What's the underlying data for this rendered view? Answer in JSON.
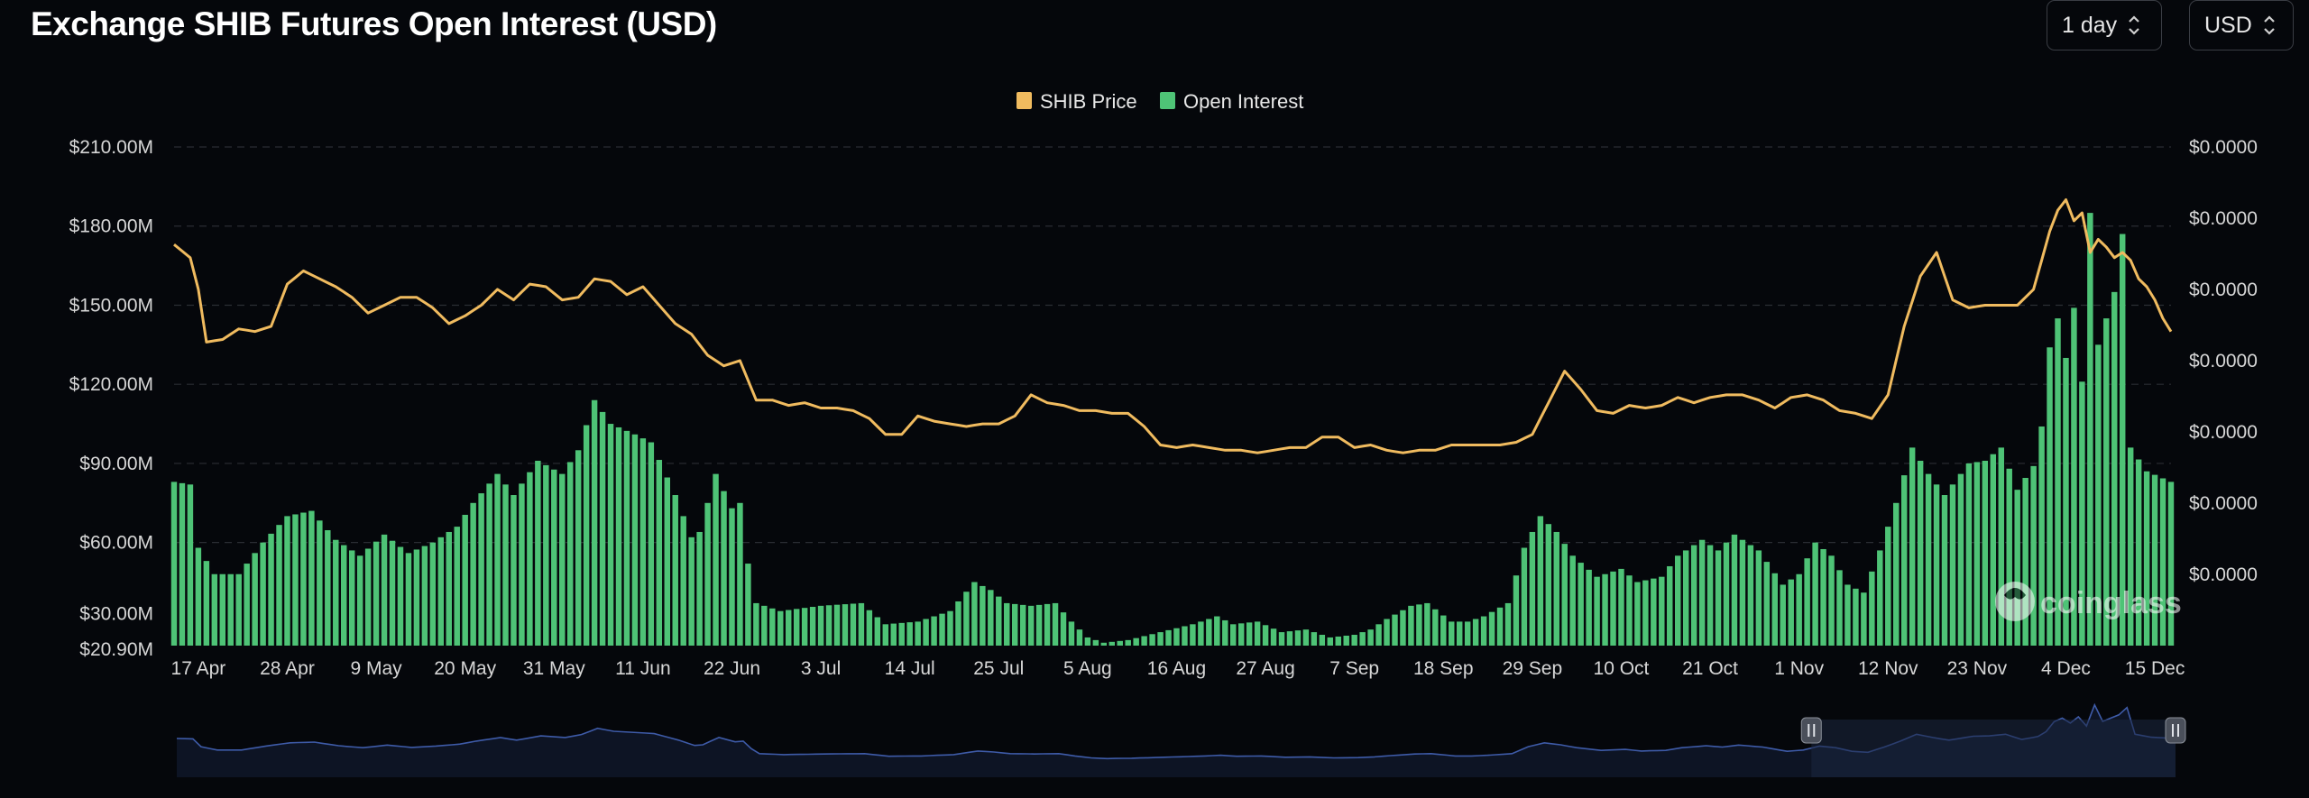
{
  "header": {
    "title": "Exchange SHIB Futures Open Interest (USD)",
    "interval_label": "1 day",
    "currency_label": "USD"
  },
  "icons": {
    "dropdown": "chevron-up-down-icon",
    "watermark": "coinglass-logo-icon",
    "handle": "pause-handle-icon"
  },
  "colors": {
    "background": "#05070b",
    "price_line": "#f0bb5f",
    "open_interest_bar": "#4ec376",
    "navigator_line": "#3e5ba8",
    "navigator_fill": "#0d1424",
    "grid": "#2a2d33"
  },
  "watermark": {
    "text": "coinglass"
  },
  "chart_data": {
    "type": "bar",
    "legend": [
      "SHIB Price",
      "Open Interest"
    ],
    "legend_position": "top-center",
    "grid": true,
    "y_left": {
      "ticks": [
        "$210.00M",
        "$180.00M",
        "$150.00M",
        "$120.00M",
        "$90.00M",
        "$60.00M",
        "$30.00M",
        "$20.90M"
      ],
      "tick_values": [
        210,
        180,
        150,
        120,
        90,
        60,
        30,
        20.9
      ],
      "range": [
        20.9,
        210
      ],
      "unit": "USD millions"
    },
    "y_right": {
      "ticks": [
        "$0.0000",
        "$0.0000",
        "$0.0000",
        "$0.0000",
        "$0.0000",
        "$0.0000",
        "$0.0000"
      ]
    },
    "x_ticks": [
      "17 Apr",
      "28 Apr",
      "9 May",
      "20 May",
      "31 May",
      "11 Jun",
      "22 Jun",
      "3 Jul",
      "14 Jul",
      "25 Jul",
      "5 Aug",
      "16 Aug",
      "27 Aug",
      "7 Sep",
      "18 Sep",
      "29 Sep",
      "10 Oct",
      "21 Oct",
      "1 Nov",
      "12 Nov",
      "23 Nov",
      "4 Dec",
      "15 Dec"
    ],
    "x_range": [
      "2023-04-14",
      "2023-12-17"
    ],
    "series": [
      {
        "name": "Open Interest",
        "type": "bar",
        "axis": "left",
        "keypoints": [
          [
            0,
            83
          ],
          [
            2,
            82
          ],
          [
            3,
            58
          ],
          [
            5,
            48
          ],
          [
            8,
            48
          ],
          [
            11,
            60
          ],
          [
            14,
            70
          ],
          [
            17,
            72
          ],
          [
            20,
            61
          ],
          [
            23,
            55
          ],
          [
            26,
            63
          ],
          [
            29,
            56
          ],
          [
            32,
            60
          ],
          [
            35,
            66
          ],
          [
            37,
            75
          ],
          [
            40,
            86
          ],
          [
            42,
            78
          ],
          [
            45,
            91
          ],
          [
            48,
            86
          ],
          [
            50,
            95
          ],
          [
            52,
            114
          ],
          [
            54,
            105
          ],
          [
            57,
            101
          ],
          [
            59,
            98
          ],
          [
            62,
            78
          ],
          [
            64,
            62
          ],
          [
            65,
            64
          ],
          [
            67,
            86
          ],
          [
            69,
            73
          ],
          [
            70,
            75
          ],
          [
            71,
            52
          ],
          [
            72,
            37
          ],
          [
            75,
            34
          ],
          [
            80,
            36
          ],
          [
            85,
            37
          ],
          [
            88,
            29
          ],
          [
            92,
            30
          ],
          [
            96,
            34
          ],
          [
            99,
            45
          ],
          [
            101,
            42
          ],
          [
            103,
            37
          ],
          [
            106,
            36
          ],
          [
            109,
            37
          ],
          [
            111,
            30
          ],
          [
            113,
            24
          ],
          [
            115,
            22
          ],
          [
            118,
            23
          ],
          [
            122,
            26
          ],
          [
            126,
            29
          ],
          [
            129,
            32
          ],
          [
            131,
            29
          ],
          [
            134,
            30
          ],
          [
            137,
            26
          ],
          [
            140,
            27
          ],
          [
            143,
            24
          ],
          [
            146,
            25
          ],
          [
            148,
            27
          ],
          [
            150,
            31
          ],
          [
            153,
            36
          ],
          [
            155,
            37
          ],
          [
            158,
            30
          ],
          [
            160,
            30
          ],
          [
            162,
            32
          ],
          [
            165,
            37
          ],
          [
            167,
            58
          ],
          [
            169,
            70
          ],
          [
            171,
            64
          ],
          [
            173,
            55
          ],
          [
            176,
            47
          ],
          [
            179,
            50
          ],
          [
            181,
            45
          ],
          [
            184,
            47
          ],
          [
            186,
            55
          ],
          [
            189,
            61
          ],
          [
            191,
            57
          ],
          [
            193,
            63
          ],
          [
            196,
            57
          ],
          [
            199,
            44
          ],
          [
            201,
            48
          ],
          [
            203,
            60
          ],
          [
            205,
            55
          ],
          [
            207,
            44
          ],
          [
            209,
            41
          ],
          [
            211,
            57
          ],
          [
            213,
            75
          ],
          [
            215,
            96
          ],
          [
            217,
            86
          ],
          [
            219,
            78
          ],
          [
            222,
            90
          ],
          [
            224,
            91
          ],
          [
            226,
            96
          ],
          [
            228,
            80
          ],
          [
            230,
            89
          ],
          [
            231,
            104
          ],
          [
            232,
            134
          ],
          [
            233,
            145
          ],
          [
            234,
            130
          ],
          [
            235,
            149
          ],
          [
            236,
            121
          ],
          [
            237,
            185
          ],
          [
            238,
            135
          ],
          [
            240,
            155
          ],
          [
            241,
            177
          ],
          [
            242,
            96
          ],
          [
            244,
            87
          ],
          [
            247,
            83
          ],
          [
            249,
            79
          ],
          [
            250,
            80
          ]
        ]
      },
      {
        "name": "SHIB Price",
        "type": "line",
        "axis": "right",
        "keypoints": [
          [
            0,
            173
          ],
          [
            2,
            168
          ],
          [
            3,
            156
          ],
          [
            4,
            136
          ],
          [
            6,
            137
          ],
          [
            8,
            141
          ],
          [
            10,
            140
          ],
          [
            12,
            142
          ],
          [
            14,
            158
          ],
          [
            16,
            163
          ],
          [
            18,
            160
          ],
          [
            20,
            157
          ],
          [
            22,
            153
          ],
          [
            24,
            147
          ],
          [
            26,
            150
          ],
          [
            28,
            153
          ],
          [
            30,
            153
          ],
          [
            32,
            149
          ],
          [
            34,
            143
          ],
          [
            36,
            146
          ],
          [
            38,
            150
          ],
          [
            40,
            156
          ],
          [
            42,
            152
          ],
          [
            44,
            158
          ],
          [
            46,
            157
          ],
          [
            48,
            152
          ],
          [
            50,
            153
          ],
          [
            52,
            160
          ],
          [
            54,
            159
          ],
          [
            56,
            154
          ],
          [
            58,
            157
          ],
          [
            60,
            150
          ],
          [
            62,
            143
          ],
          [
            64,
            139
          ],
          [
            66,
            131
          ],
          [
            68,
            127
          ],
          [
            70,
            129
          ],
          [
            72,
            114
          ],
          [
            74,
            114
          ],
          [
            76,
            112
          ],
          [
            78,
            113
          ],
          [
            80,
            111
          ],
          [
            82,
            111
          ],
          [
            84,
            110
          ],
          [
            86,
            107
          ],
          [
            88,
            101
          ],
          [
            90,
            101
          ],
          [
            92,
            108
          ],
          [
            94,
            106
          ],
          [
            96,
            105
          ],
          [
            98,
            104
          ],
          [
            100,
            105
          ],
          [
            102,
            105
          ],
          [
            104,
            108
          ],
          [
            106,
            116
          ],
          [
            108,
            113
          ],
          [
            110,
            112
          ],
          [
            112,
            110
          ],
          [
            114,
            110
          ],
          [
            116,
            109
          ],
          [
            118,
            109
          ],
          [
            120,
            104
          ],
          [
            122,
            97
          ],
          [
            124,
            96
          ],
          [
            126,
            97
          ],
          [
            128,
            96
          ],
          [
            130,
            95
          ],
          [
            132,
            95
          ],
          [
            134,
            94
          ],
          [
            136,
            95
          ],
          [
            138,
            96
          ],
          [
            140,
            96
          ],
          [
            142,
            100
          ],
          [
            144,
            100
          ],
          [
            146,
            96
          ],
          [
            148,
            97
          ],
          [
            150,
            95
          ],
          [
            152,
            94
          ],
          [
            154,
            95
          ],
          [
            156,
            95
          ],
          [
            158,
            97
          ],
          [
            160,
            97
          ],
          [
            162,
            97
          ],
          [
            164,
            97
          ],
          [
            166,
            98
          ],
          [
            168,
            101
          ],
          [
            170,
            113
          ],
          [
            172,
            125
          ],
          [
            174,
            118
          ],
          [
            176,
            110
          ],
          [
            178,
            109
          ],
          [
            180,
            112
          ],
          [
            182,
            111
          ],
          [
            184,
            112
          ],
          [
            186,
            115
          ],
          [
            188,
            113
          ],
          [
            190,
            115
          ],
          [
            192,
            116
          ],
          [
            194,
            116
          ],
          [
            196,
            114
          ],
          [
            198,
            111
          ],
          [
            200,
            115
          ],
          [
            202,
            116
          ],
          [
            204,
            114
          ],
          [
            206,
            110
          ],
          [
            208,
            109
          ],
          [
            210,
            107
          ],
          [
            212,
            116
          ],
          [
            214,
            142
          ],
          [
            216,
            161
          ],
          [
            218,
            170
          ],
          [
            220,
            152
          ],
          [
            222,
            149
          ],
          [
            224,
            150
          ],
          [
            226,
            150
          ],
          [
            228,
            150
          ],
          [
            230,
            156
          ],
          [
            231,
            167
          ],
          [
            232,
            178
          ],
          [
            233,
            186
          ],
          [
            234,
            190
          ],
          [
            235,
            182
          ],
          [
            236,
            185
          ],
          [
            237,
            170
          ],
          [
            238,
            175
          ],
          [
            239,
            172
          ],
          [
            240,
            168
          ],
          [
            241,
            170
          ],
          [
            242,
            167
          ],
          [
            243,
            160
          ],
          [
            244,
            157
          ],
          [
            245,
            152
          ],
          [
            246,
            145
          ],
          [
            247,
            140
          ],
          [
            248,
            145
          ],
          [
            249,
            143
          ],
          [
            250,
            143
          ]
        ]
      }
    ]
  },
  "navigator": {
    "selected_range": [
      "2023-11-02",
      "2023-12-17"
    ]
  }
}
